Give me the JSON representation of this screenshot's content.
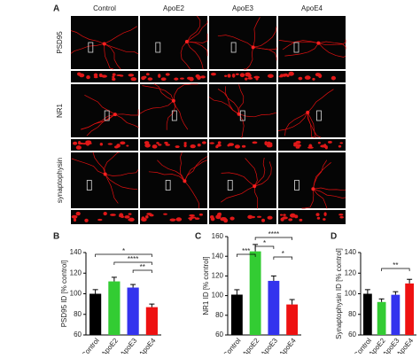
{
  "panel_a": {
    "label": "A",
    "columns": [
      "Control",
      "ApoE2",
      "ApoE3",
      "ApoE4"
    ],
    "rows": [
      "PSD95",
      "NR1",
      "synaptophysin"
    ]
  },
  "chart_data": [
    {
      "type": "bar",
      "panel": "B",
      "y_label": "PSD95 ID [% control]",
      "categories": [
        "Control",
        "ApoE2",
        "ApoE3",
        "ApoE4"
      ],
      "values": [
        100,
        112,
        106,
        87
      ],
      "errors": [
        4,
        4,
        3,
        3
      ],
      "colors": [
        "#000000",
        "#33cc33",
        "#3333ee",
        "#ee1111"
      ],
      "ylim": [
        60,
        140
      ],
      "yticks": [
        60,
        80,
        100,
        120,
        140
      ],
      "annotations": [
        "*",
        "****",
        "**"
      ]
    },
    {
      "type": "bar",
      "panel": "C",
      "y_label": "NR1 ID [% control]",
      "categories": [
        "Control",
        "ApoE2",
        "ApoE3",
        "ApoE4"
      ],
      "values": [
        101,
        145,
        115,
        91
      ],
      "errors": [
        5,
        7,
        5,
        5
      ],
      "colors": [
        "#000000",
        "#33cc33",
        "#3333ee",
        "#ee1111"
      ],
      "ylim": [
        60,
        160
      ],
      "yticks": [
        60,
        80,
        100,
        120,
        140,
        160
      ],
      "annotations": [
        "****",
        "*",
        "***",
        "*"
      ]
    },
    {
      "type": "bar",
      "panel": "D",
      "y_label": "Synaptophysin ID [% control]",
      "categories": [
        "Control",
        "ApoE2",
        "ApoE3",
        "ApoE4"
      ],
      "values": [
        100,
        92,
        99,
        110
      ],
      "errors": [
        4,
        3,
        3,
        4
      ],
      "colors": [
        "#000000",
        "#33cc33",
        "#3333ee",
        "#ee1111"
      ],
      "ylim": [
        60,
        140
      ],
      "yticks": [
        60,
        80,
        100,
        120,
        140
      ],
      "annotations": [
        "**"
      ]
    }
  ]
}
